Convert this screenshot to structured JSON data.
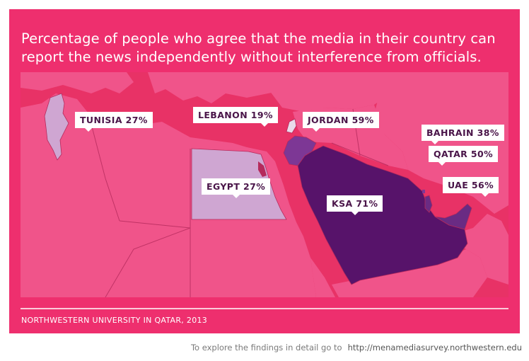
{
  "title": "Percentage of people who agree that the media in their country can report the news independently without interference from officials.",
  "source": "NORTHWESTERN UNIVERSITY IN QATAR, 2013",
  "footer": {
    "text": "To explore the findings in detail go to",
    "link": "http://menamediasurvey.northwestern.edu"
  },
  "colors": {
    "background": "#ee2f6e",
    "land": "#f0548a",
    "sea": "#e83266",
    "border": "#b52a5c",
    "level_27": "#cfa6d2",
    "level_19": "#e9d9ea",
    "level_38_59": "#7d3795",
    "level_50_56": "#6a2b83",
    "level_71": "#57136a",
    "label_text": "#4a1549"
  },
  "countries": [
    {
      "id": "tunisia",
      "label": "TUNISIA 27%",
      "value": 27
    },
    {
      "id": "lebanon",
      "label": "LEBANON 19%",
      "value": 19
    },
    {
      "id": "jordan",
      "label": "JORDAN 59%",
      "value": 59
    },
    {
      "id": "bahrain",
      "label": "BAHRAIN 38%",
      "value": 38
    },
    {
      "id": "qatar",
      "label": "QATAR 50%",
      "value": 50
    },
    {
      "id": "egypt",
      "label": "EGYPT 27%",
      "value": 27
    },
    {
      "id": "uae",
      "label": "UAE 56%",
      "value": 56
    },
    {
      "id": "ksa",
      "label": "KSA 71%",
      "value": 71
    }
  ]
}
